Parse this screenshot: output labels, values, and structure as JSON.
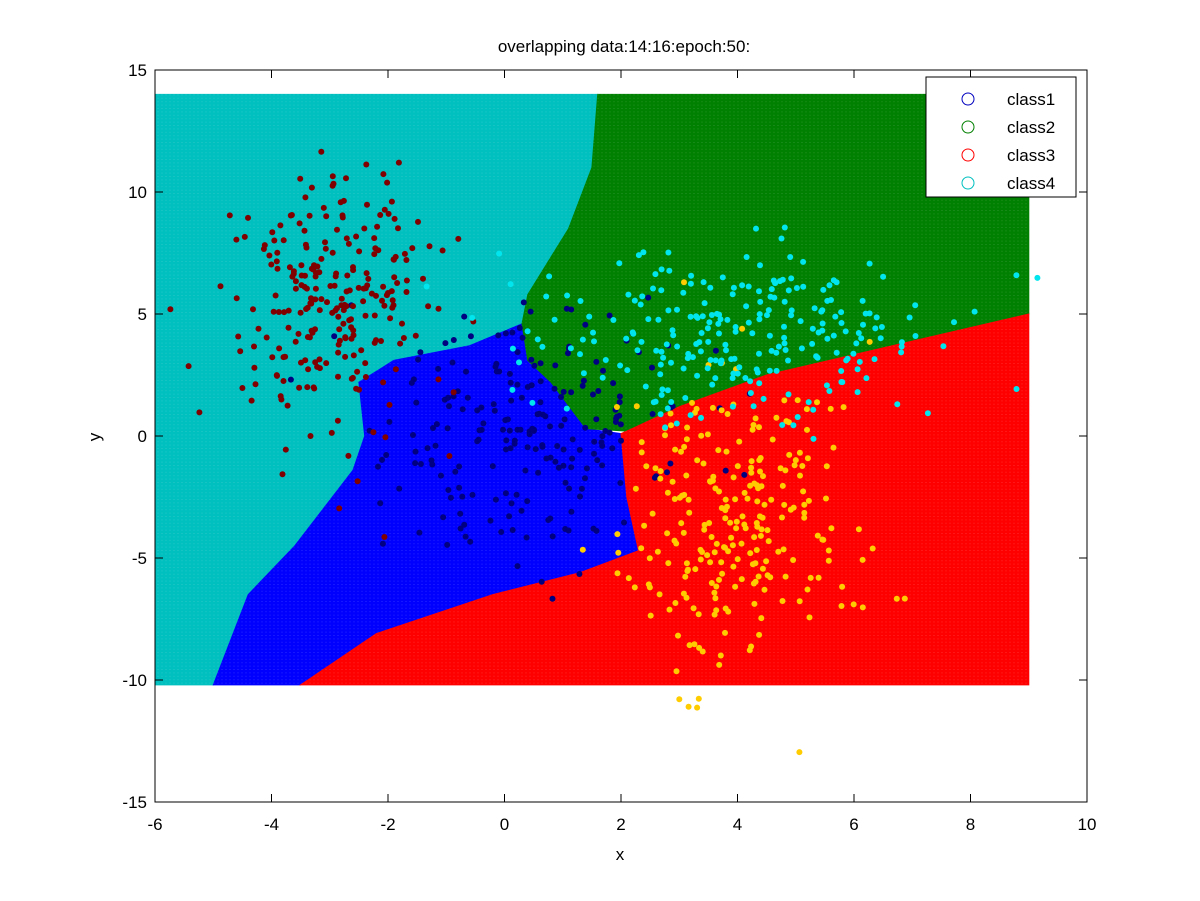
{
  "chart_data": {
    "type": "scatter",
    "title": "overlapping data:14:16:epoch:50:",
    "xlabel": "x",
    "ylabel": "y",
    "xlim": [
      -6,
      10
    ],
    "ylim": [
      -15,
      15
    ],
    "xticks": [
      -6,
      -4,
      -2,
      0,
      2,
      4,
      6,
      8,
      10
    ],
    "yticks": [
      -15,
      -10,
      -5,
      0,
      5,
      10,
      15
    ],
    "x_tick_labels": [
      "-6",
      "-4",
      "-2",
      "0",
      "2",
      "4",
      "6",
      "8",
      "10"
    ],
    "y_tick_labels": [
      "-15",
      "-10",
      "-5",
      "0",
      "5",
      "10",
      "15"
    ],
    "grid": false,
    "legend_position": "top-right",
    "legend": [
      {
        "label": "class1",
        "color": "#0000bf"
      },
      {
        "label": "class2",
        "color": "#008000"
      },
      {
        "label": "class3",
        "color": "#ff0000"
      },
      {
        "label": "class4",
        "color": "#00bfbf"
      }
    ],
    "decision_regions": {
      "x_range": [
        -6,
        9
      ],
      "y_range": [
        -10.2,
        14
      ],
      "regions": [
        {
          "class": "class4",
          "color": "#00bfbf",
          "boundary": [
            [
              -6,
              14
            ],
            [
              1.6,
              14
            ],
            [
              1.5,
              11
            ],
            [
              1.1,
              8.5
            ],
            [
              0.4,
              5.8
            ],
            [
              0.3,
              4.6
            ],
            [
              -0.6,
              3.7
            ],
            [
              -1.9,
              3.1
            ],
            [
              -2.5,
              2.2
            ],
            [
              -2.4,
              0
            ],
            [
              -2.6,
              -1.4
            ],
            [
              -3.6,
              -4.5
            ],
            [
              -4.4,
              -6.5
            ],
            [
              -5,
              -10.2
            ],
            [
              -6,
              -10.2
            ]
          ]
        },
        {
          "class": "class1",
          "color": "#0000ff",
          "boundary": [
            [
              0.3,
              4.6
            ],
            [
              0.4,
              3.1
            ],
            [
              0.8,
              2.2
            ],
            [
              1.4,
              0.3
            ],
            [
              2,
              0.1
            ],
            [
              2.1,
              -2.5
            ],
            [
              2.3,
              -4.7
            ],
            [
              1.3,
              -5.6
            ],
            [
              -0.2,
              -6.5
            ],
            [
              -2.2,
              -8.1
            ],
            [
              -3.5,
              -10.2
            ],
            [
              -5,
              -10.2
            ],
            [
              -4.4,
              -6.5
            ],
            [
              -3.6,
              -4.5
            ],
            [
              -2.6,
              -1.4
            ],
            [
              -2.4,
              0
            ],
            [
              -2.5,
              2.2
            ],
            [
              -1.9,
              3.1
            ],
            [
              -0.6,
              3.7
            ]
          ]
        },
        {
          "class": "class2",
          "color": "#008000",
          "boundary": [
            [
              1.6,
              14
            ],
            [
              9,
              14
            ],
            [
              9,
              5
            ],
            [
              4.5,
              2.5
            ],
            [
              3,
              1.2
            ],
            [
              2.1,
              0.2
            ],
            [
              1.4,
              0.3
            ],
            [
              0.8,
              2.2
            ],
            [
              0.4,
              3.1
            ],
            [
              0.3,
              4.6
            ],
            [
              0.4,
              5.8
            ],
            [
              1.1,
              8.5
            ],
            [
              1.5,
              11
            ]
          ]
        },
        {
          "class": "class3",
          "color": "#ff0000",
          "boundary": [
            [
              2.1,
              0.2
            ],
            [
              3,
              1.2
            ],
            [
              4.5,
              2.5
            ],
            [
              9,
              5
            ],
            [
              9,
              -10.2
            ],
            [
              -3.5,
              -10.2
            ],
            [
              -2.2,
              -8.1
            ],
            [
              -0.2,
              -6.5
            ],
            [
              1.3,
              -5.6
            ],
            [
              2.3,
              -4.7
            ],
            [
              2.1,
              -2.5
            ],
            [
              2,
              0.1
            ]
          ]
        }
      ]
    },
    "series": [
      {
        "name": "class1",
        "color": "#000080",
        "center": [
          0.5,
          0
        ],
        "spread": [
          1.3,
          2.6
        ],
        "count": 220
      },
      {
        "name": "class2",
        "color": "#800000",
        "center": [
          -3,
          5.5
        ],
        "spread": [
          0.9,
          2.8
        ],
        "count": 250
      },
      {
        "name": "class3",
        "color": "#ffcc00",
        "center": [
          4,
          -3.5
        ],
        "spread": [
          0.95,
          2.9
        ],
        "count": 250
      },
      {
        "name": "class4",
        "color": "#00e5ee",
        "center": [
          4,
          4
        ],
        "spread": [
          1.6,
          1.7
        ],
        "count": 250
      }
    ]
  }
}
